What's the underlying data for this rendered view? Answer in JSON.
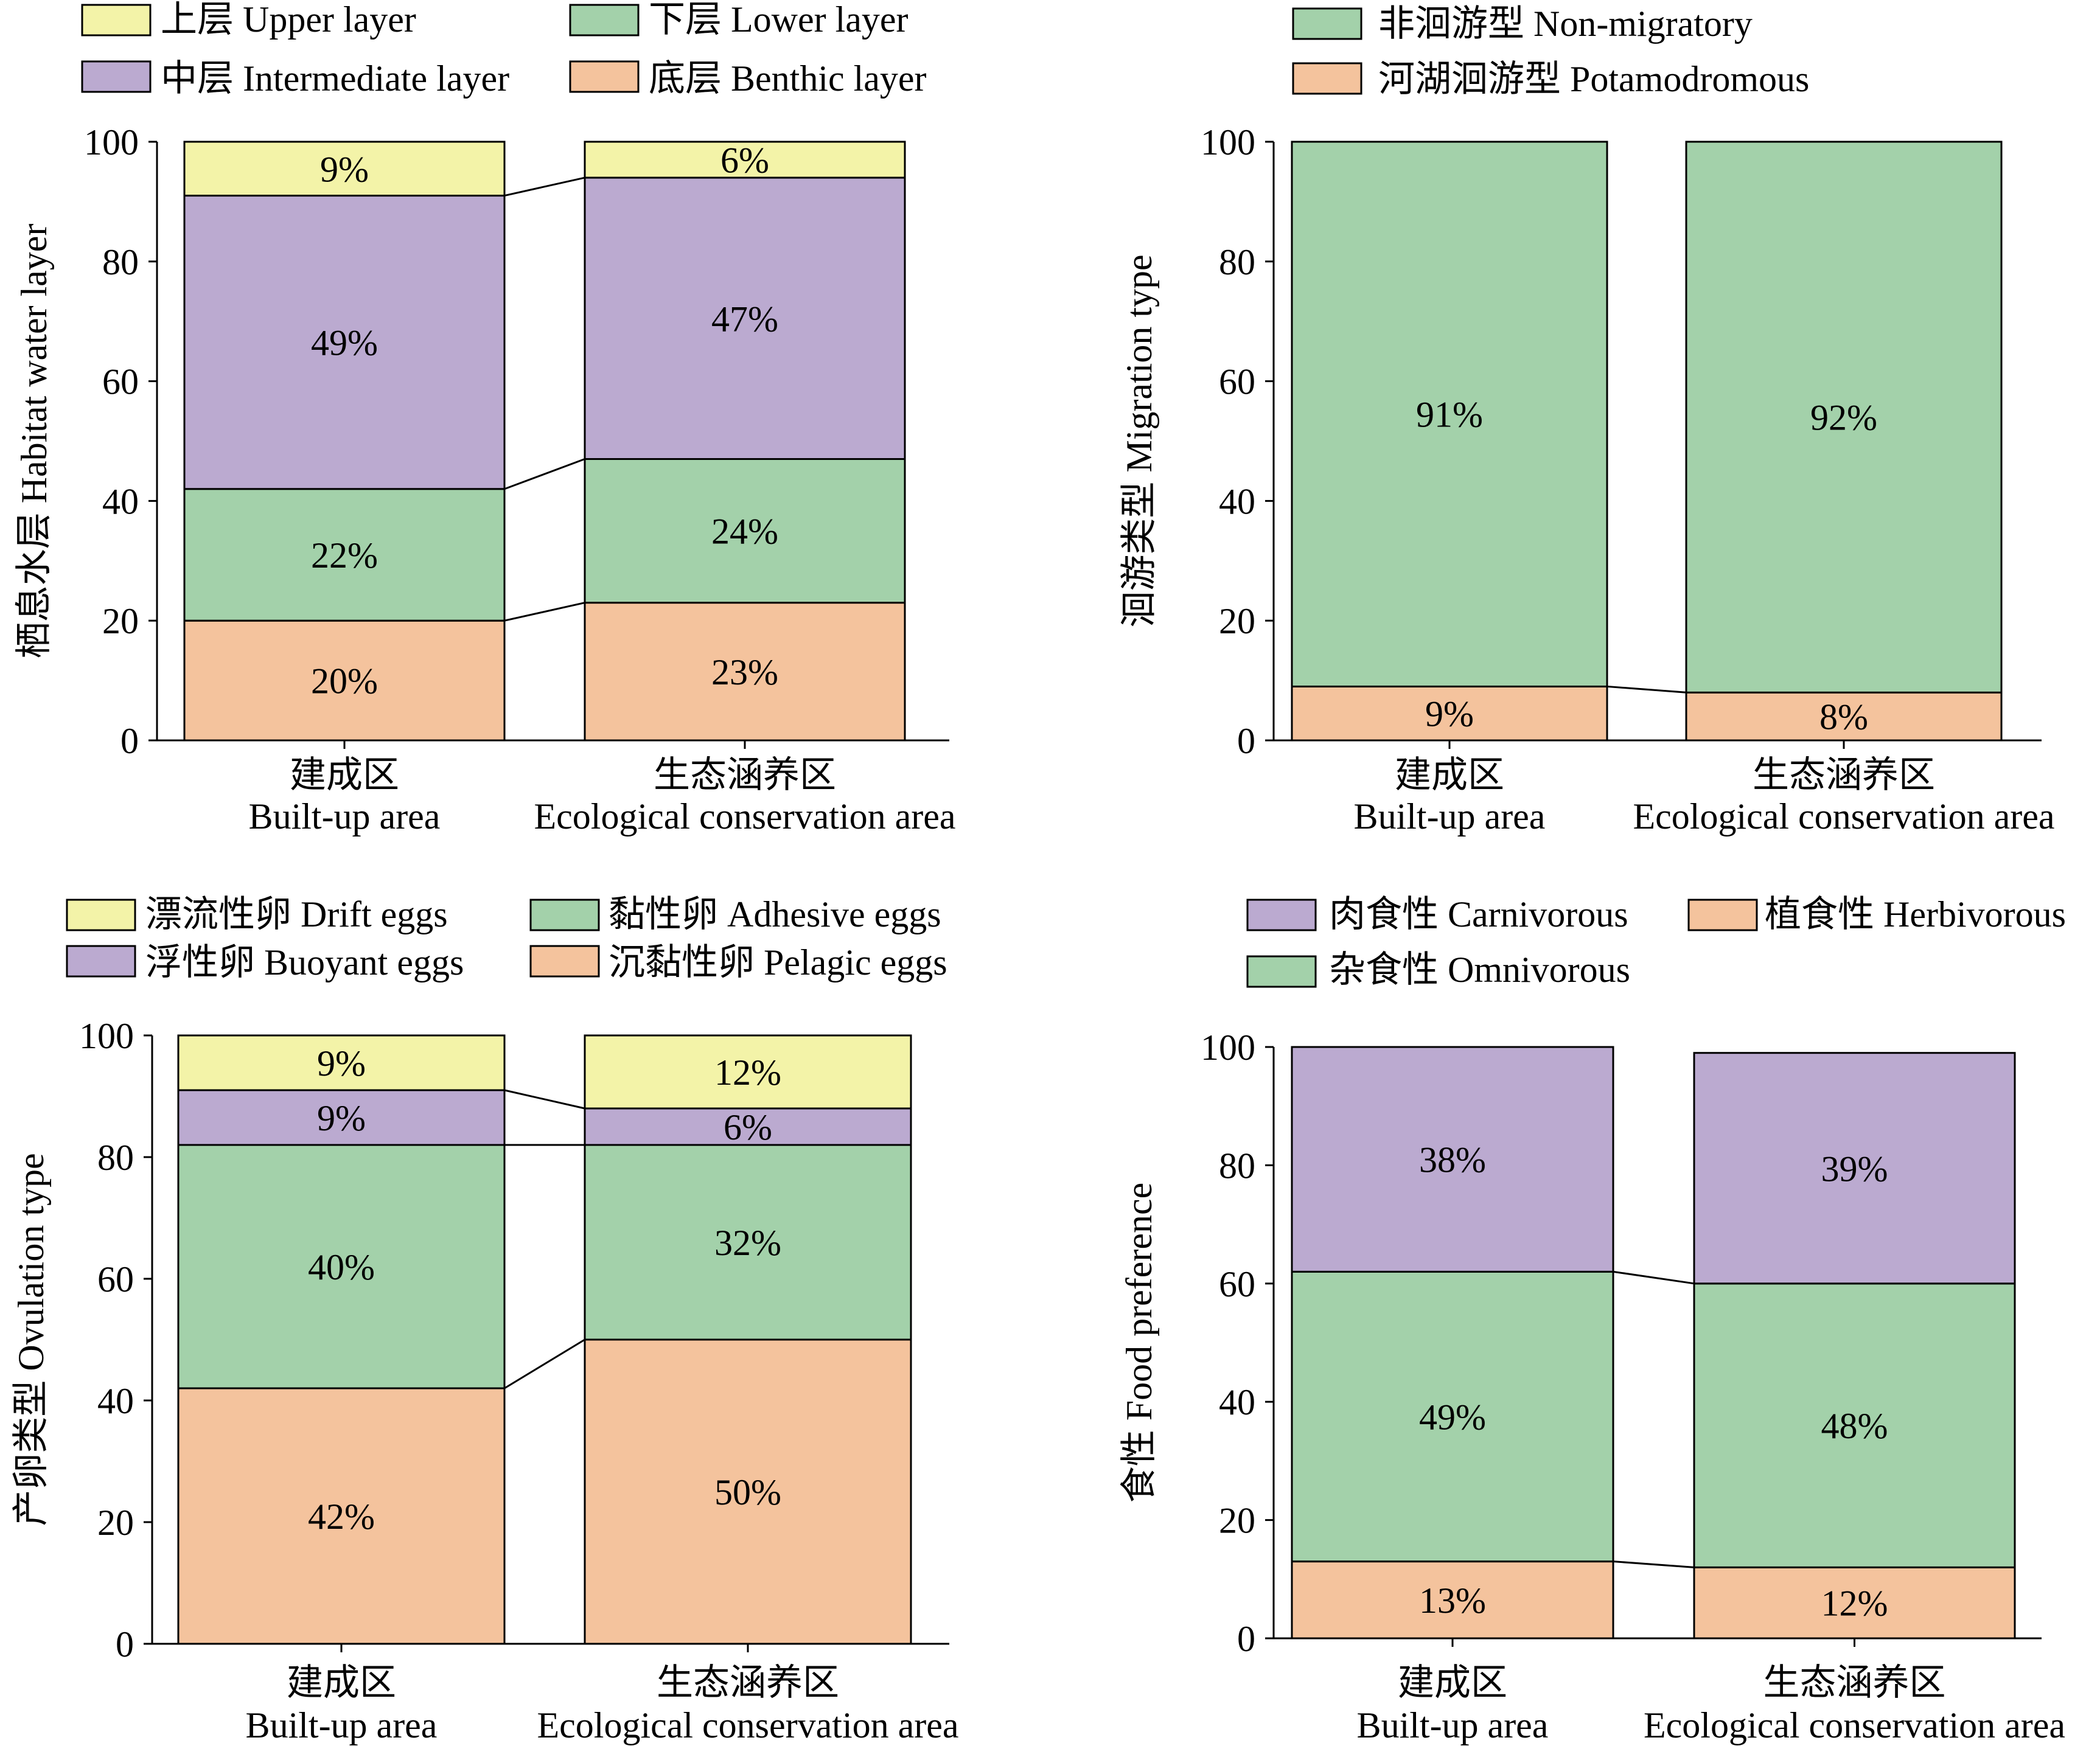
{
  "colors": {
    "upper": "#f3f3a8",
    "intermediate": "#bbaad0",
    "lower": "#a3d1aa",
    "benthic": "#f4c39d",
    "stroke": "#000000",
    "background": "#ffffff"
  },
  "chart_data": [
    {
      "type": "bar",
      "stacked": true,
      "ylabel": "栖息水层 Habitat water layer",
      "ylim": [
        0,
        100
      ],
      "yticks": [
        0,
        20,
        40,
        60,
        80,
        100
      ],
      "categories": [
        {
          "cn": "建成区",
          "en": "Built-up area"
        },
        {
          "cn": "生态涵养区",
          "en": "Ecological conservation area"
        }
      ],
      "legend": [
        {
          "label": "上层 Upper layer",
          "color": "upper"
        },
        {
          "label": "下层 Lower layer",
          "color": "lower"
        },
        {
          "label": "中层 Intermediate layer",
          "color": "intermediate"
        },
        {
          "label": "底层 Benthic layer",
          "color": "benthic"
        }
      ],
      "series": [
        {
          "name": "底层 Benthic layer",
          "color": "benthic",
          "values": [
            20,
            23
          ],
          "labels": [
            "20%",
            "23%"
          ]
        },
        {
          "name": "下层 Lower layer",
          "color": "lower",
          "values": [
            22,
            24
          ],
          "labels": [
            "22%",
            "24%"
          ]
        },
        {
          "name": "中层 Intermediate layer",
          "color": "intermediate",
          "values": [
            49,
            47
          ],
          "labels": [
            "49%",
            "47%"
          ]
        },
        {
          "name": "上层 Upper layer",
          "color": "upper",
          "values": [
            9,
            6
          ],
          "labels": [
            "9%",
            "6%"
          ]
        }
      ]
    },
    {
      "type": "bar",
      "stacked": true,
      "ylabel": "洄游类型 Migration type",
      "ylim": [
        0,
        100
      ],
      "yticks": [
        0,
        20,
        40,
        60,
        80,
        100
      ],
      "categories": [
        {
          "cn": "建成区",
          "en": "Built-up area"
        },
        {
          "cn": "生态涵养区",
          "en": "Ecological conservation area"
        }
      ],
      "legend": [
        {
          "label": "非洄游型 Non-migratory",
          "color": "lower"
        },
        {
          "label": "河湖洄游型 Potamodromous",
          "color": "benthic"
        }
      ],
      "series": [
        {
          "name": "河湖洄游型 Potamodromous",
          "color": "benthic",
          "values": [
            9,
            8
          ],
          "labels": [
            "9%",
            "8%"
          ]
        },
        {
          "name": "非洄游型 Non-migratory",
          "color": "lower",
          "values": [
            91,
            92
          ],
          "labels": [
            "91%",
            "92%"
          ]
        }
      ]
    },
    {
      "type": "bar",
      "stacked": true,
      "ylabel": "产卵类型 Ovulation type",
      "ylim": [
        0,
        100
      ],
      "yticks": [
        0,
        20,
        40,
        60,
        80,
        100
      ],
      "categories": [
        {
          "cn": "建成区",
          "en": "Built-up area"
        },
        {
          "cn": "生态涵养区",
          "en": "Ecological conservation area"
        }
      ],
      "legend": [
        {
          "label": "漂流性卵 Drift eggs",
          "color": "upper"
        },
        {
          "label": "黏性卵 Adhesive eggs",
          "color": "lower"
        },
        {
          "label": "浮性卵 Buoyant eggs",
          "color": "intermediate"
        },
        {
          "label": "沉黏性卵 Pelagic eggs",
          "color": "benthic"
        }
      ],
      "series": [
        {
          "name": "沉黏性卵 Pelagic eggs",
          "color": "benthic",
          "values": [
            42,
            50
          ],
          "labels": [
            "42%",
            "50%"
          ]
        },
        {
          "name": "黏性卵 Adhesive eggs",
          "color": "lower",
          "values": [
            40,
            32
          ],
          "labels": [
            "40%",
            "32%"
          ]
        },
        {
          "name": "浮性卵 Buoyant eggs",
          "color": "intermediate",
          "values": [
            9,
            6
          ],
          "labels": [
            "9%",
            "6%"
          ]
        },
        {
          "name": "漂流性卵 Drift eggs",
          "color": "upper",
          "values": [
            9,
            12
          ],
          "labels": [
            "9%",
            "12%"
          ]
        }
      ]
    },
    {
      "type": "bar",
      "stacked": true,
      "ylabel": "食性 Food preference",
      "ylim": [
        0,
        100
      ],
      "yticks": [
        0,
        20,
        40,
        60,
        80,
        100
      ],
      "categories": [
        {
          "cn": "建成区",
          "en": "Built-up area"
        },
        {
          "cn": "生态涵养区",
          "en": "Ecological conservation area"
        }
      ],
      "legend": [
        {
          "label": "肉食性 Carnivorous",
          "color": "intermediate"
        },
        {
          "label": "植食性 Herbivorous",
          "color": "benthic"
        },
        {
          "label": "杂食性 Omnivorous",
          "color": "lower"
        }
      ],
      "series": [
        {
          "name": "植食性 Herbivorous",
          "color": "benthic",
          "values": [
            13,
            12
          ],
          "labels": [
            "13%",
            "12%"
          ]
        },
        {
          "name": "杂食性 Omnivorous",
          "color": "lower",
          "values": [
            49,
            48
          ],
          "labels": [
            "49%",
            "48%"
          ]
        },
        {
          "name": "肉食性 Carnivorous",
          "color": "intermediate",
          "values": [
            38,
            39
          ],
          "labels": [
            "38%",
            "39%"
          ]
        }
      ]
    }
  ]
}
